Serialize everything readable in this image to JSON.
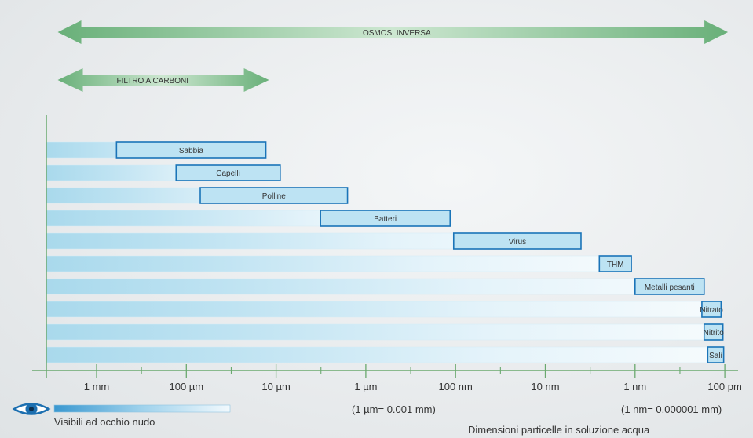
{
  "chart_data": {
    "type": "bar",
    "orientation": "horizontal",
    "title": "",
    "xlabel": "Dimensioni particelle in soluzione acqua",
    "ylabel": "",
    "x_scale": "log",
    "x_unit": "m",
    "x_ticks": [
      {
        "label": "1 mm",
        "value": 0.001
      },
      {
        "label": "100 µm",
        "value": 0.0001
      },
      {
        "label": "10 µm",
        "value": 1e-05
      },
      {
        "label": "1 µm",
        "value": 1e-06
      },
      {
        "label": "100 nm",
        "value": 1e-07
      },
      {
        "label": "10 nm",
        "value": 1e-08
      },
      {
        "label": "1 nm",
        "value": 1e-09
      },
      {
        "label": "100 pm",
        "value": 1e-10
      }
    ],
    "categories": [
      "Sabbia",
      "Capelli",
      "Polline",
      "Batteri",
      "Virus",
      "THM",
      "Metalli pesanti",
      "Nitrato",
      "Nitrito",
      "Sali"
    ],
    "ranges": [
      {
        "name": "Sabbia",
        "max": 0.0006,
        "min": 1.3e-05
      },
      {
        "name": "Capelli",
        "max": 0.00013,
        "min": 9e-06
      },
      {
        "name": "Polline",
        "max": 7e-05,
        "min": 1.6e-06
      },
      {
        "name": "Batteri",
        "max": 3.2e-06,
        "min": 1.15e-07
      },
      {
        "name": "Virus",
        "max": 1.05e-07,
        "min": 4e-09
      },
      {
        "name": "THM",
        "max": 2.5e-09,
        "min": 1.1e-09
      },
      {
        "name": "Metalli pesanti",
        "max": 1e-09,
        "min": 1.7e-10
      },
      {
        "name": "Nitrato",
        "max": 1.8e-10,
        "min": 1.1e-10
      },
      {
        "name": "Nitrito",
        "max": 1.7e-10,
        "min": 1.05e-10
      },
      {
        "name": "Sali",
        "max": 1.55e-10,
        "min": 1.03e-10
      }
    ],
    "filters": [
      {
        "label": "OSMOSI INVERSA",
        "from": 0.0025,
        "to": 1e-10
      },
      {
        "label": "FILTRO A CARBONI",
        "from": 0.0025,
        "to": 1.3e-05
      }
    ],
    "annotations": [
      "(1 µm= 0.001 mm)",
      "(1 nm= 0.000001 mm)"
    ],
    "legend": {
      "label": "Visibili ad occhio nudo",
      "icon": "eye-icon"
    },
    "colors": {
      "arrow_light": "#bfe0c4",
      "arrow_dark": "#69b079",
      "bar_fill": "#a9d9ec",
      "box_border": "#1a74b8",
      "box_fill": "#bde3f3",
      "axis": "#6aa96f",
      "eye": "#1c6fb0"
    }
  }
}
